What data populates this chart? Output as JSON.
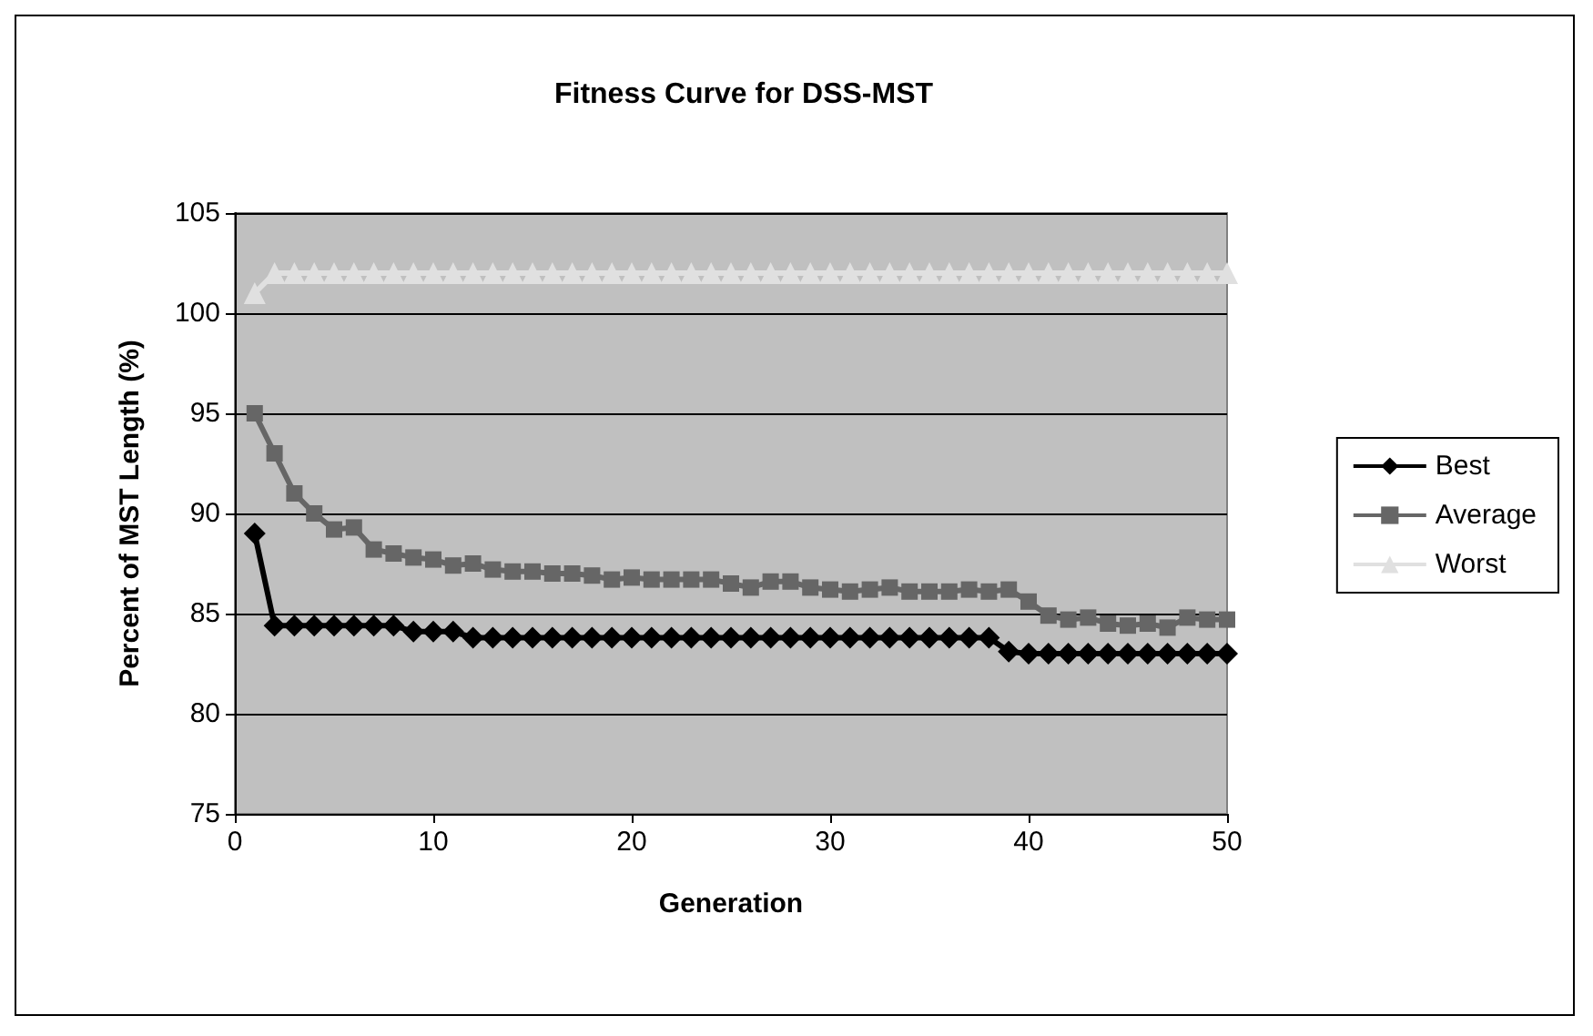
{
  "chart_data": {
    "type": "line",
    "title": "Fitness Curve for DSS-MST",
    "xlabel": "Generation",
    "ylabel": "Percent of MST Length (%)",
    "x": [
      1,
      2,
      3,
      4,
      5,
      6,
      7,
      8,
      9,
      10,
      11,
      12,
      13,
      14,
      15,
      16,
      17,
      18,
      19,
      20,
      21,
      22,
      23,
      24,
      25,
      26,
      27,
      28,
      29,
      30,
      31,
      32,
      33,
      34,
      35,
      36,
      37,
      38,
      39,
      40,
      41,
      42,
      43,
      44,
      45,
      46,
      47,
      48,
      49,
      50
    ],
    "series": [
      {
        "name": "Best",
        "color": "#000000",
        "marker": "diamond",
        "values": [
          89,
          84.4,
          84.4,
          84.4,
          84.4,
          84.4,
          84.4,
          84.4,
          84.1,
          84.1,
          84.1,
          83.8,
          83.8,
          83.8,
          83.8,
          83.8,
          83.8,
          83.8,
          83.8,
          83.8,
          83.8,
          83.8,
          83.8,
          83.8,
          83.8,
          83.8,
          83.8,
          83.8,
          83.8,
          83.8,
          83.8,
          83.8,
          83.8,
          83.8,
          83.8,
          83.8,
          83.8,
          83.8,
          83.1,
          83.0,
          83.0,
          83.0,
          83.0,
          83.0,
          83.0,
          83.0,
          83.0,
          83.0,
          83.0,
          83.0
        ]
      },
      {
        "name": "Average",
        "color": "#666666",
        "marker": "square",
        "values": [
          95,
          93,
          91,
          90,
          89.2,
          89.3,
          88.2,
          88,
          87.8,
          87.7,
          87.4,
          87.5,
          87.2,
          87.1,
          87.1,
          87,
          87,
          86.9,
          86.7,
          86.8,
          86.7,
          86.7,
          86.7,
          86.7,
          86.5,
          86.3,
          86.6,
          86.6,
          86.3,
          86.2,
          86.1,
          86.2,
          86.3,
          86.1,
          86.1,
          86.1,
          86.2,
          86.1,
          86.2,
          85.6,
          84.9,
          84.7,
          84.8,
          84.5,
          84.4,
          84.5,
          84.3,
          84.8,
          84.7,
          84.7
        ]
      },
      {
        "name": "Worst",
        "color": "#e0e0e0",
        "marker": "triangle",
        "values": [
          101,
          102,
          102,
          102,
          102,
          102,
          102,
          102,
          102,
          102,
          102,
          102,
          102,
          102,
          102,
          102,
          102,
          102,
          102,
          102,
          102,
          102,
          102,
          102,
          102,
          102,
          102,
          102,
          102,
          102,
          102,
          102,
          102,
          102,
          102,
          102,
          102,
          102,
          102,
          102,
          102,
          102,
          102,
          102,
          102,
          102,
          102,
          102,
          102,
          102
        ]
      }
    ],
    "xlim": [
      0,
      50
    ],
    "xticks": [
      0,
      10,
      20,
      30,
      40,
      50
    ],
    "ylim": [
      75,
      105
    ],
    "yticks": [
      75,
      80,
      85,
      90,
      95,
      100,
      105
    ],
    "grid": "y",
    "legend": "right"
  }
}
